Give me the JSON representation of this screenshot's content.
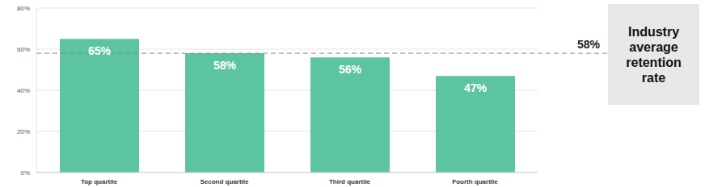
{
  "chart_data": {
    "type": "bar",
    "categories": [
      "Top quartile",
      "Second quartile",
      "Third quartile",
      "Fourth quartile"
    ],
    "values": [
      65,
      58,
      56,
      47
    ],
    "value_labels": [
      "65%",
      "58%",
      "56%",
      "47%"
    ],
    "color": "#5cc5a0",
    "ylim": [
      0,
      80
    ],
    "yticks": [
      {
        "value": 0,
        "label": "0%"
      },
      {
        "value": 20,
        "label": "20%"
      },
      {
        "value": 40,
        "label": "40%"
      },
      {
        "value": 60,
        "label": "60%"
      },
      {
        "value": 80,
        "label": "80%"
      }
    ],
    "grid": true,
    "data_labels": true,
    "reference_line": {
      "value": 58,
      "label": "58%",
      "text": "Industry average retention rate",
      "line_style": "dashed"
    }
  }
}
